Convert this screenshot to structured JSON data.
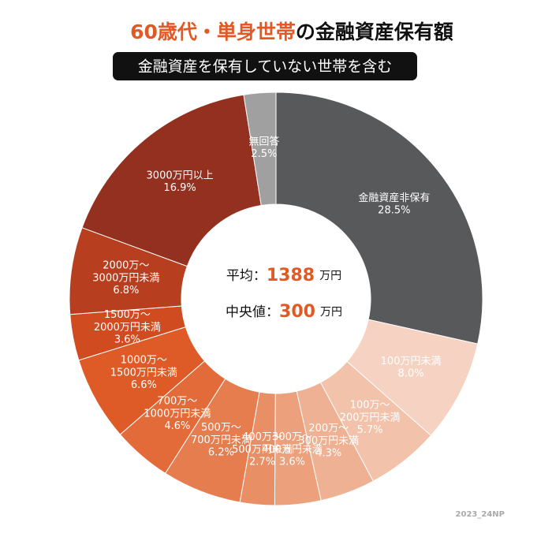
{
  "chart_data": {
    "type": "donut",
    "title": {
      "highlight": "60歳代・単身世帯",
      "rest": "の金融資産保有額"
    },
    "subtitle": "金融資産を保有していない世帯を含む",
    "categories": [
      "金融資産非保有",
      "100万円未満",
      "100万〜200万円未満",
      "200万〜300万円未満",
      "300万〜400万円未満",
      "400万〜500万円未満",
      "500万〜700万円未満",
      "700万〜1000万円未満",
      "1000万〜1500万円未満",
      "1500万〜2000万円未満",
      "2000万〜3000万円未満",
      "3000万円以上",
      "無回答"
    ],
    "values": [
      28.5,
      8.0,
      5.7,
      4.3,
      3.6,
      2.7,
      6.2,
      4.6,
      6.6,
      3.6,
      6.8,
      16.9,
      2.5
    ],
    "value_labels": [
      "28.5%",
      "8.0%",
      "5.7%",
      "4.3%",
      "3.6%",
      "2.7%",
      "6.2%",
      "4.6%",
      "6.6%",
      "3.6%",
      "6.8%",
      "16.9%",
      "2.5%"
    ],
    "colors": [
      "#58595b",
      "#f6d2c2",
      "#f3c2aa",
      "#efb193",
      "#eca07b",
      "#e98f65",
      "#e67d4f",
      "#e36b3a",
      "#de5b27",
      "#d04b20",
      "#b83e20",
      "#93301f",
      "#a0a0a0"
    ],
    "center": {
      "mean_label": "平均：",
      "mean": 1388,
      "median_label": "中央値：",
      "median": 300,
      "unit": "万円"
    },
    "footer": "2023_24NP"
  }
}
